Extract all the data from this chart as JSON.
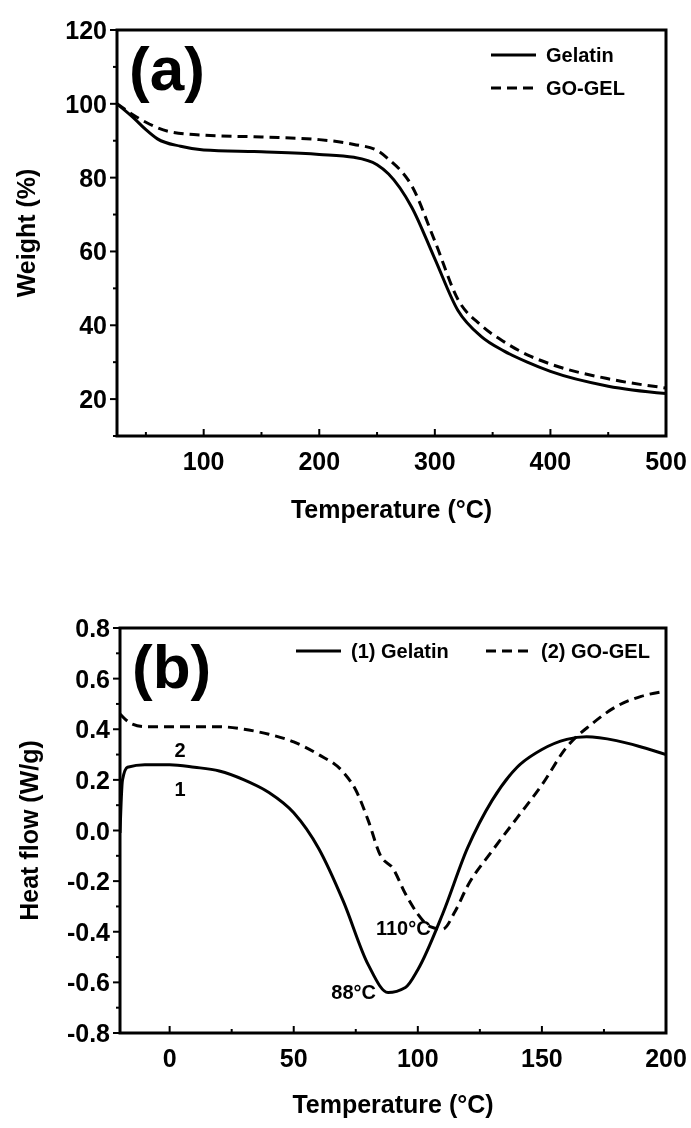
{
  "chart_data": [
    {
      "type": "line",
      "xlabel": "Temperature (°C)",
      "ylabel": "Weight (%)",
      "annotations": [
        "(a)"
      ],
      "legend": "top right",
      "xlim": [
        25,
        500
      ],
      "ylim": [
        10,
        120
      ],
      "xticks": [
        {
          "value": 50,
          "label": null
        },
        100,
        {
          "value": 150,
          "label": null
        },
        200,
        {
          "value": 250,
          "label": null
        },
        300,
        {
          "value": 350,
          "label": null
        },
        400,
        {
          "value": 450,
          "label": null
        },
        500
      ],
      "yticks": [
        {
          "value": 10,
          "label": null
        },
        20,
        {
          "value": 30,
          "label": null
        },
        40,
        {
          "value": 50,
          "label": null
        },
        60,
        {
          "value": 70,
          "label": null
        },
        80,
        {
          "value": 90,
          "label": null
        },
        100,
        {
          "value": 110,
          "label": null
        },
        120
      ],
      "series": [
        {
          "name": "Gelatin",
          "color": "#000000",
          "line_style": "solid",
          "x": [
            25,
            40,
            50,
            60,
            80,
            100,
            150,
            200,
            230,
            250,
            260,
            280,
            300,
            320,
            340,
            360,
            380,
            400,
            450,
            500
          ],
          "values": [
            100,
            96,
            93,
            90.5,
            88.5,
            87.5,
            87,
            86.3,
            85.5,
            83.5,
            81,
            72,
            58,
            44,
            37,
            33,
            30,
            27.5,
            23.5,
            21.5
          ]
        },
        {
          "name": "GO-GEL",
          "color": "#000000",
          "line_style": "dashed",
          "x": [
            25,
            50,
            70,
            100,
            150,
            200,
            230,
            250,
            260,
            280,
            300,
            320,
            340,
            360,
            380,
            400,
            450,
            500
          ],
          "values": [
            100,
            95,
            92.5,
            91.5,
            91,
            90.3,
            89,
            87.4,
            85,
            77.8,
            62.8,
            47,
            40,
            35.5,
            32,
            29.5,
            25.5,
            23
          ]
        }
      ]
    },
    {
      "type": "line",
      "xlabel": "Temperature (°C)",
      "ylabel": "Heat flow (W/g)",
      "annotations": [
        "(b)",
        {
          "text": "110°C",
          "x": 110,
          "y": -0.39
        },
        {
          "text": "88°C",
          "x": 88,
          "y": -0.64
        },
        "1",
        "2"
      ],
      "legend": "top right",
      "xlim": [
        -20,
        200
      ],
      "ylim": [
        -0.8,
        0.8
      ],
      "xticks": [
        0,
        {
          "value": 25,
          "label": null
        },
        50,
        {
          "value": 75,
          "label": null
        },
        100,
        {
          "value": 125,
          "label": null
        },
        150,
        {
          "value": 175,
          "label": null
        },
        200
      ],
      "yticks": [
        {
          "value": -0.8,
          "label": "-0.8"
        },
        {
          "value": -0.7,
          "label": null
        },
        {
          "value": -0.6,
          "label": "-0.6"
        },
        {
          "value": -0.5,
          "label": null
        },
        {
          "value": -0.4,
          "label": "-0.4"
        },
        {
          "value": -0.3,
          "label": null
        },
        {
          "value": -0.2,
          "label": "-0.2"
        },
        {
          "value": -0.1,
          "label": null
        },
        {
          "value": 0,
          "label": "0.0"
        },
        {
          "value": 0.1,
          "label": null
        },
        {
          "value": 0.2,
          "label": "0.2"
        },
        {
          "value": 0.3,
          "label": null
        },
        {
          "value": 0.4,
          "label": "0.4"
        },
        {
          "value": 0.5,
          "label": null
        },
        {
          "value": 0.6,
          "label": "0.6"
        },
        {
          "value": 0.7,
          "label": null
        },
        {
          "value": 0.8,
          "label": "0.8"
        }
      ],
      "series": [
        {
          "name": "(1) Gelatin",
          "color": "#000000",
          "line_style": "solid",
          "x": [
            -20,
            -19,
            -17,
            -10,
            0,
            10,
            20,
            30,
            40,
            50,
            60,
            70,
            80,
            88,
            95,
            100,
            110,
            120,
            130,
            140,
            150,
            160,
            168,
            180,
            190,
            200
          ],
          "values": [
            -0.01,
            0.2,
            0.25,
            0.26,
            0.26,
            0.25,
            0.235,
            0.2,
            0.15,
            0.07,
            -0.07,
            -0.28,
            -0.53,
            -0.64,
            -0.62,
            -0.55,
            -0.33,
            -0.07,
            0.12,
            0.25,
            0.32,
            0.36,
            0.37,
            0.355,
            0.33,
            0.3
          ]
        },
        {
          "name": "(2) GO-GEL",
          "color": "#000000",
          "line_style": "dashed",
          "x": [
            -20,
            -15,
            -10,
            0,
            20,
            30,
            40,
            50,
            60,
            70,
            75,
            80,
            85,
            90,
            95,
            100,
            105,
            110,
            115,
            120,
            130,
            140,
            150,
            160,
            170,
            180,
            190,
            200
          ],
          "values": [
            0.46,
            0.42,
            0.41,
            0.41,
            0.41,
            0.4,
            0.38,
            0.35,
            0.3,
            0.23,
            0.16,
            0.04,
            -0.1,
            -0.15,
            -0.25,
            -0.33,
            -0.38,
            -0.39,
            -0.32,
            -0.22,
            -0.08,
            0.05,
            0.18,
            0.33,
            0.42,
            0.49,
            0.53,
            0.55
          ]
        }
      ]
    }
  ]
}
